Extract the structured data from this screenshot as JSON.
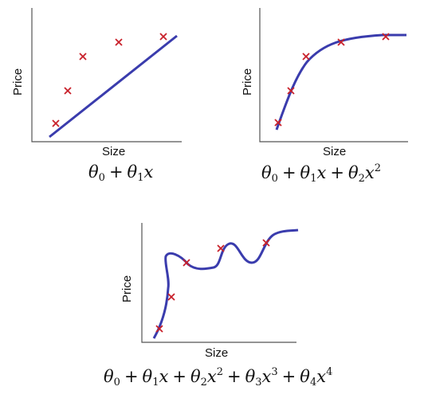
{
  "panels": [
    {
      "id": "linear",
      "xlabel": "Size",
      "ylabel": "Price"
    },
    {
      "id": "quadratic",
      "xlabel": "Size",
      "ylabel": "Price"
    },
    {
      "id": "quartic",
      "xlabel": "Size",
      "ylabel": "Price"
    }
  ],
  "marker_symbol": "x",
  "colors": {
    "curve": "#3a3cad",
    "marker": "#c8202a",
    "axis": "#555555"
  }
}
